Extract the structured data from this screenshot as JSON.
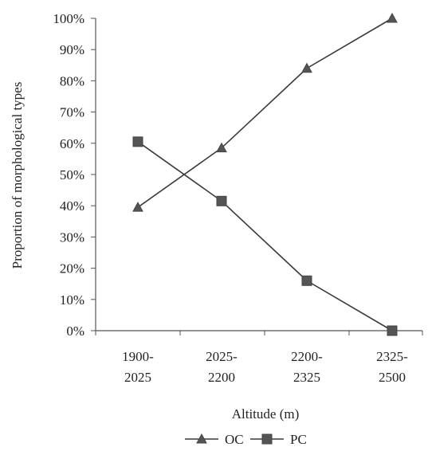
{
  "chart_data": {
    "type": "line",
    "title": "",
    "xlabel": "Altitude (m)",
    "ylabel": "Proportion of morphological types",
    "categories": [
      [
        "1900-",
        "2025"
      ],
      [
        "2025-",
        "2200"
      ],
      [
        "2200-",
        "2325"
      ],
      [
        "2325-",
        "2500"
      ]
    ],
    "yticks": [
      "0%",
      "10%",
      "20%",
      "30%",
      "40%",
      "50%",
      "60%",
      "70%",
      "80%",
      "90%",
      "100%"
    ],
    "ylim": [
      0,
      100
    ],
    "grid": false,
    "legend_position": "bottom",
    "series": [
      {
        "name": "OC",
        "marker": "triangle",
        "values": [
          39.5,
          58.5,
          84,
          100
        ]
      },
      {
        "name": "PC",
        "marker": "square",
        "values": [
          60.5,
          41.5,
          16,
          0
        ]
      }
    ],
    "colors": {
      "line": "#3a3a3a",
      "axis": "#555555",
      "text": "#222222"
    }
  }
}
